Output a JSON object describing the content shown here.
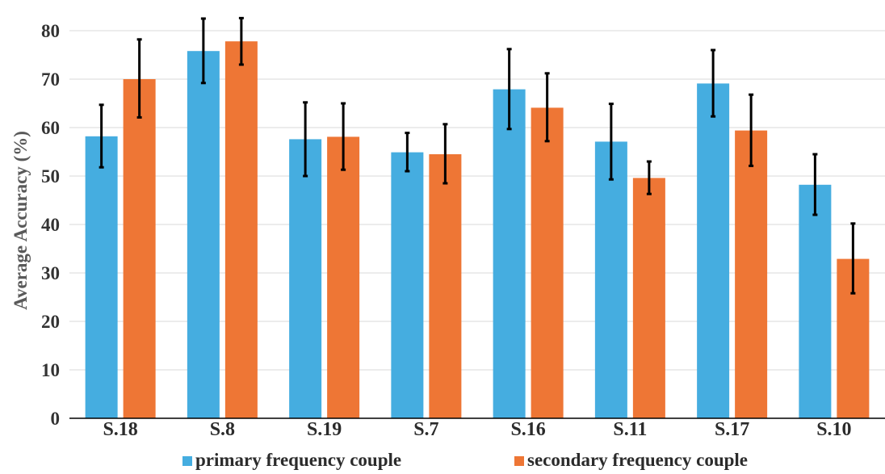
{
  "chart_data": {
    "type": "bar",
    "title": "",
    "xlabel": "",
    "ylabel": "Average Accuracy (%)",
    "ylim": [
      0,
      85
    ],
    "yticks": [
      0,
      10,
      20,
      30,
      40,
      50,
      60,
      70,
      80
    ],
    "grid": true,
    "legend_position": "bottom",
    "categories": [
      "S.18",
      "S.8",
      "S.19",
      "S.7",
      "S.16",
      "S.11",
      "S.17",
      "S.10"
    ],
    "series": [
      {
        "name": "primary frequency couple",
        "color": "#45ADE0",
        "values": [
          58.2,
          75.8,
          57.6,
          54.9,
          67.9,
          57.1,
          69.1,
          48.2
        ],
        "error_low": [
          51.8,
          69.2,
          50.0,
          51.0,
          59.7,
          49.3,
          62.3,
          42.0
        ],
        "error_high": [
          64.7,
          82.5,
          65.2,
          58.9,
          76.2,
          64.9,
          76.0,
          54.5
        ]
      },
      {
        "name": "secondary frequency couple",
        "color": "#EE7635",
        "values": [
          70.0,
          77.8,
          58.1,
          54.5,
          64.1,
          49.6,
          59.4,
          32.9
        ],
        "error_low": [
          62.1,
          73.0,
          51.3,
          48.5,
          57.2,
          46.3,
          52.1,
          25.8
        ],
        "error_high": [
          78.2,
          82.6,
          65.0,
          60.7,
          71.2,
          53.0,
          66.8,
          40.2
        ]
      }
    ]
  }
}
